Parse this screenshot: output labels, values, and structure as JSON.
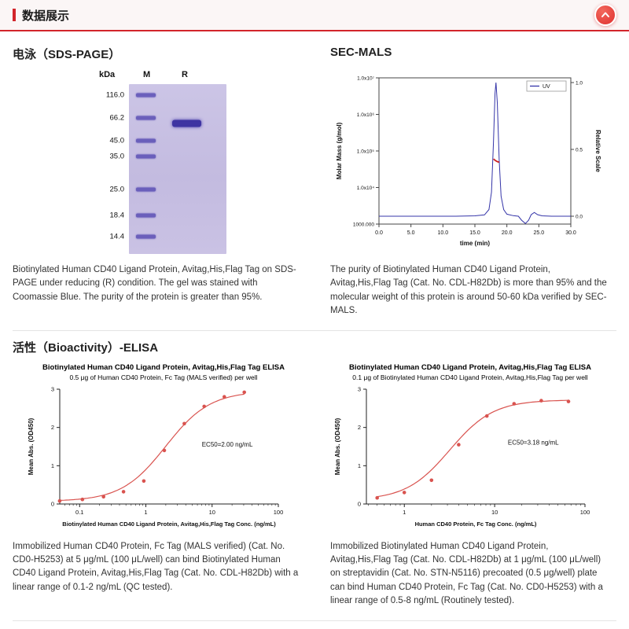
{
  "colors": {
    "accent": "#d2252b",
    "gel_band": "#5b4fb5",
    "uv_blue": "#3434a8",
    "mals_red": "#cc2020",
    "elisa_red": "#d9534f"
  },
  "header": {
    "title": "数据展示",
    "back_to_top_icon": "chevron-up-icon"
  },
  "sds": {
    "heading": "电泳（SDS-PAGE）",
    "gel": {
      "unit_label": "kDa",
      "lane_m": "M",
      "lane_r": "R",
      "markers": [
        {
          "label": "116.0",
          "pos": 0.064
        },
        {
          "label": "66.2",
          "pos": 0.201
        },
        {
          "label": "45.0",
          "pos": 0.333
        },
        {
          "label": "35.0",
          "pos": 0.425
        },
        {
          "label": "25.0",
          "pos": 0.621
        },
        {
          "label": "18.4",
          "pos": 0.772
        },
        {
          "label": "14.4",
          "pos": 0.9
        }
      ],
      "r_band_pos": 0.233
    },
    "caption": "Biotinylated Human CD40 Ligand Protein, Avitag,His,Flag Tag on SDS-PAGE under reducing (R) condition. The gel was stained with Coomassie Blue. The purity of the protein is greater than 95%."
  },
  "sec": {
    "heading": "SEC-MALS",
    "caption": "The purity of Biotinylated Human CD40 Ligand Protein, Avitag,His,Flag Tag (Cat. No. CDL-H82Db) is more than 95% and the molecular weight of this protein is around 50-60 kDa verified by SEC-MALS."
  },
  "bioactivity": {
    "heading": "活性（Bioactivity）-ELISA",
    "caption_left": "Immobilized Human CD40 Protein, Fc Tag (MALS verified) (Cat. No. CD0-H5253) at 5 μg/mL (100 μL/well) can bind Biotinylated Human CD40 Ligand Protein, Avitag,His,Flag Tag (Cat. No. CDL-H82Db) with a linear range of 0.1-2 ng/mL (QC tested).",
    "caption_right": "Immobilized Biotinylated Human CD40 Ligand Protein, Avitag,His,Flag Tag (Cat. No. CDL-H82Db) at 1 μg/mL (100 μL/well) on streptavidin (Cat. No. STN-N5116) precoated (0.5 μg/well) plate can bind Human CD40 Protein, Fc Tag (Cat. No. CD0-H5253) with a linear range of 0.5-8 ng/mL (Routinely tested)."
  },
  "chart_data": [
    {
      "id": "sec-mals",
      "type": "line",
      "xlabel": "time (min)",
      "ylabel_left": "Molar Mass (g/mol)",
      "ylabel_right": "Relative Scale",
      "xlim": [
        0,
        30
      ],
      "x_ticks": [
        "0.0",
        "5.0",
        "10.0",
        "15.0",
        "20.0",
        "25.0",
        "30.0"
      ],
      "left_axis_labels": [
        "1000.000",
        "1.0x10⁴",
        "1.0x10⁵",
        "1.0x10⁶",
        "1.0x10⁷"
      ],
      "right_ticks": [
        "0.0",
        "0.5",
        "1.0"
      ],
      "legend": [
        {
          "label": "UV",
          "color": "#3434a8"
        }
      ],
      "uv_trace": [
        [
          0,
          0
        ],
        [
          3,
          0
        ],
        [
          6,
          0
        ],
        [
          9,
          0
        ],
        [
          12,
          0
        ],
        [
          15,
          0.003
        ],
        [
          16.5,
          0.01
        ],
        [
          17.2,
          0.05
        ],
        [
          17.6,
          0.18
        ],
        [
          17.9,
          0.55
        ],
        [
          18.15,
          0.92
        ],
        [
          18.3,
          1.0
        ],
        [
          18.5,
          0.85
        ],
        [
          18.8,
          0.42
        ],
        [
          19.1,
          0.15
        ],
        [
          19.5,
          0.05
        ],
        [
          20,
          0.015
        ],
        [
          21,
          0.004
        ],
        [
          21.8,
          0
        ],
        [
          22.3,
          -0.03
        ],
        [
          22.9,
          -0.055
        ],
        [
          23.4,
          -0.03
        ],
        [
          23.8,
          0.012
        ],
        [
          24.3,
          0.028
        ],
        [
          24.8,
          0.012
        ],
        [
          25.5,
          0.003
        ],
        [
          27,
          0
        ],
        [
          30,
          0
        ]
      ],
      "mals_points": [
        [
          17.9,
          4.78
        ],
        [
          18.2,
          4.74
        ],
        [
          18.5,
          4.71
        ],
        [
          18.8,
          4.69
        ]
      ],
      "mals_color": "#cc2020"
    },
    {
      "id": "elisa-left",
      "type": "scatter",
      "title": "Biotinylated Human CD40 Ligand Protein, Avitag,His,Flag Tag ELISA",
      "subtitle": "0.5 μg of Human CD40 Protein, Fc Tag (MALS verified) per well",
      "xlabel": "Biotinylated Human CD40 Ligand Protein, Avitag,His,Flag Tag Conc. (ng/mL)",
      "ylabel": "Mean Abs. (OD450)",
      "xlog": [
        -1.3,
        2
      ],
      "x_ticks": [
        {
          "v": 0.1,
          "label": "0.1"
        },
        {
          "v": 1,
          "label": "1"
        },
        {
          "v": 10,
          "label": "10"
        },
        {
          "v": 100,
          "label": "100"
        }
      ],
      "ylim": [
        0,
        3
      ],
      "y_ticks": [
        0,
        1,
        2,
        3
      ],
      "points": {
        "x": [
          0.05,
          0.11,
          0.23,
          0.46,
          0.93,
          1.9,
          3.8,
          7.6,
          15.3,
          30.6
        ],
        "y": [
          0.08,
          0.12,
          0.19,
          0.32,
          0.6,
          1.4,
          2.1,
          2.55,
          2.8,
          2.92
        ]
      },
      "curve": {
        "bottom": 0.07,
        "top": 2.95,
        "ec50": 2.0,
        "hill": 1.3
      },
      "ec50_label": "EC50=2.00 ng/mL",
      "ec50_pos": [
        7,
        1.5
      ],
      "color": "#d9534f"
    },
    {
      "id": "elisa-right",
      "type": "scatter",
      "title": "Biotinylated Human CD40 Ligand Protein, Avitag,His,Flag Tag ELISA",
      "subtitle": "0.1 μg of Biotinylated Human CD40 Ligand Protein, Avitag,His,Flag Tag per well",
      "xlabel": "Human CD40 Protein, Fc Tag Conc. (ng/mL)",
      "ylabel": "Mean Abs. (OD450)",
      "xlog": [
        -0.42,
        2
      ],
      "x_ticks": [
        {
          "v": 1,
          "label": "1"
        },
        {
          "v": 10,
          "label": "10"
        },
        {
          "v": 100,
          "label": "100"
        }
      ],
      "ylim": [
        0,
        3
      ],
      "y_ticks": [
        0,
        1,
        2,
        3
      ],
      "points": {
        "x": [
          0.5,
          1,
          2,
          4,
          8.2,
          16.4,
          32.8,
          65.6
        ],
        "y": [
          0.16,
          0.3,
          0.62,
          1.55,
          2.3,
          2.62,
          2.7,
          2.68
        ]
      },
      "curve": {
        "bottom": 0.1,
        "top": 2.72,
        "ec50": 3.18,
        "hill": 1.8
      },
      "ec50_label": "EC50=3.18 ng/mL",
      "ec50_pos": [
        14,
        1.55
      ],
      "color": "#d9534f"
    }
  ]
}
